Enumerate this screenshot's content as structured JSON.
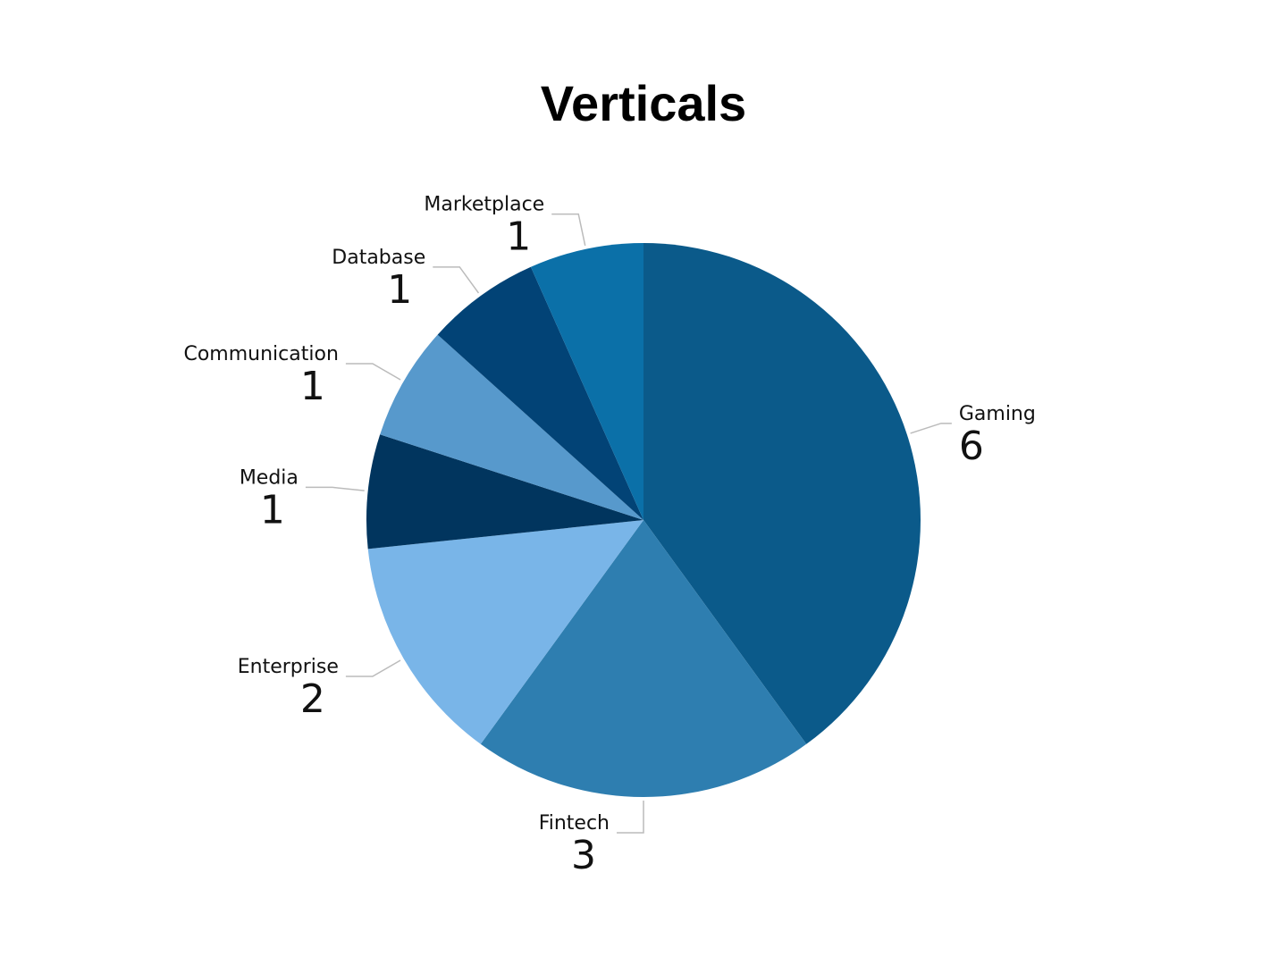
{
  "chart_data": {
    "type": "pie",
    "title": "Verticals",
    "categories": [
      "Gaming",
      "Fintech",
      "Enterprise",
      "Media",
      "Communication",
      "Database",
      "Marketplace"
    ],
    "values": [
      6,
      3,
      2,
      1,
      1,
      1,
      1
    ],
    "colors": [
      "#0b5a8a",
      "#2e7eb0",
      "#79b5e8",
      "#01355e",
      "#5799cc",
      "#024376",
      "#0b70a8"
    ]
  }
}
